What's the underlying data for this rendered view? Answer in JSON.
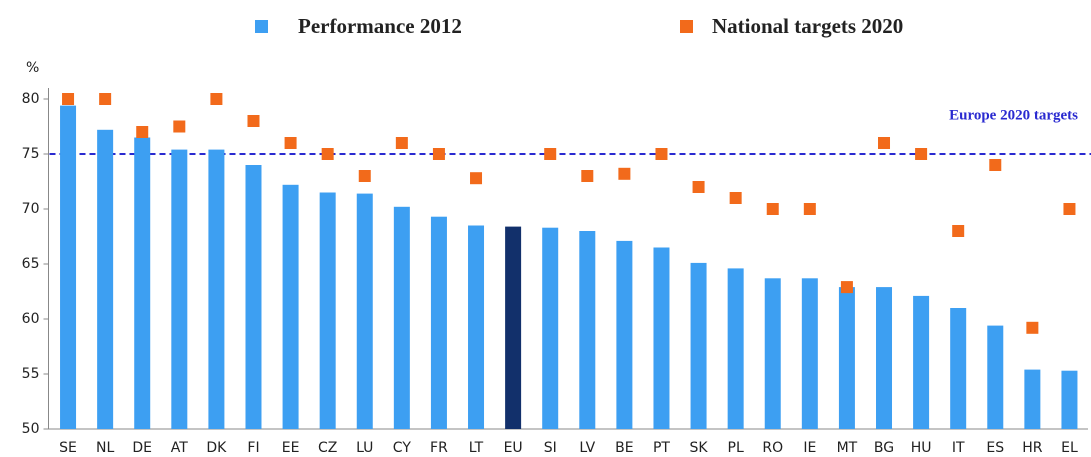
{
  "chart_data": {
    "type": "bar_scatter",
    "y_axis_label": "%",
    "categories": [
      "SE",
      "NL",
      "DE",
      "AT",
      "DK",
      "FI",
      "EE",
      "CZ",
      "LU",
      "CY",
      "FR",
      "LT",
      "EU",
      "SI",
      "LV",
      "BE",
      "PT",
      "SK",
      "PL",
      "RO",
      "IE",
      "MT",
      "BG",
      "HU",
      "IT",
      "ES",
      "HR",
      "EL"
    ],
    "series": [
      {
        "name": "Performance 2012",
        "kind": "bar",
        "color": "#3d9ff2",
        "colors": [
          "#3d9ff2",
          "#3d9ff2",
          "#3d9ff2",
          "#3d9ff2",
          "#3d9ff2",
          "#3d9ff2",
          "#3d9ff2",
          "#3d9ff2",
          "#3d9ff2",
          "#3d9ff2",
          "#3d9ff2",
          "#3d9ff2",
          "#12306b",
          "#3d9ff2",
          "#3d9ff2",
          "#3d9ff2",
          "#3d9ff2",
          "#3d9ff2",
          "#3d9ff2",
          "#3d9ff2",
          "#3d9ff2",
          "#3d9ff2",
          "#3d9ff2",
          "#3d9ff2",
          "#3d9ff2",
          "#3d9ff2",
          "#3d9ff2",
          "#3d9ff2"
        ],
        "values": [
          79.4,
          77.2,
          76.5,
          75.4,
          75.4,
          74.0,
          72.2,
          71.5,
          71.4,
          70.2,
          69.3,
          68.5,
          68.4,
          68.3,
          68.0,
          67.1,
          66.5,
          65.1,
          64.6,
          63.7,
          63.7,
          62.9,
          62.9,
          62.1,
          61.0,
          59.4,
          55.4,
          55.3
        ]
      },
      {
        "name": "National targets 2020",
        "kind": "marker",
        "color": "#f26a1b",
        "values": [
          80,
          80,
          77,
          77.5,
          80,
          78,
          76,
          75,
          73,
          76,
          75,
          72.8,
          null,
          75,
          73,
          73.2,
          75,
          72,
          71,
          70,
          70,
          62.9,
          76,
          75,
          68,
          74,
          59.2,
          70
        ]
      }
    ],
    "reference_line": {
      "value": 75,
      "label": "Europe 2020 targets",
      "color": "#2a2ad0"
    },
    "ylim": [
      50,
      81
    ],
    "yticks": [
      50,
      55,
      60,
      65,
      70,
      75,
      80
    ],
    "grid": false
  }
}
